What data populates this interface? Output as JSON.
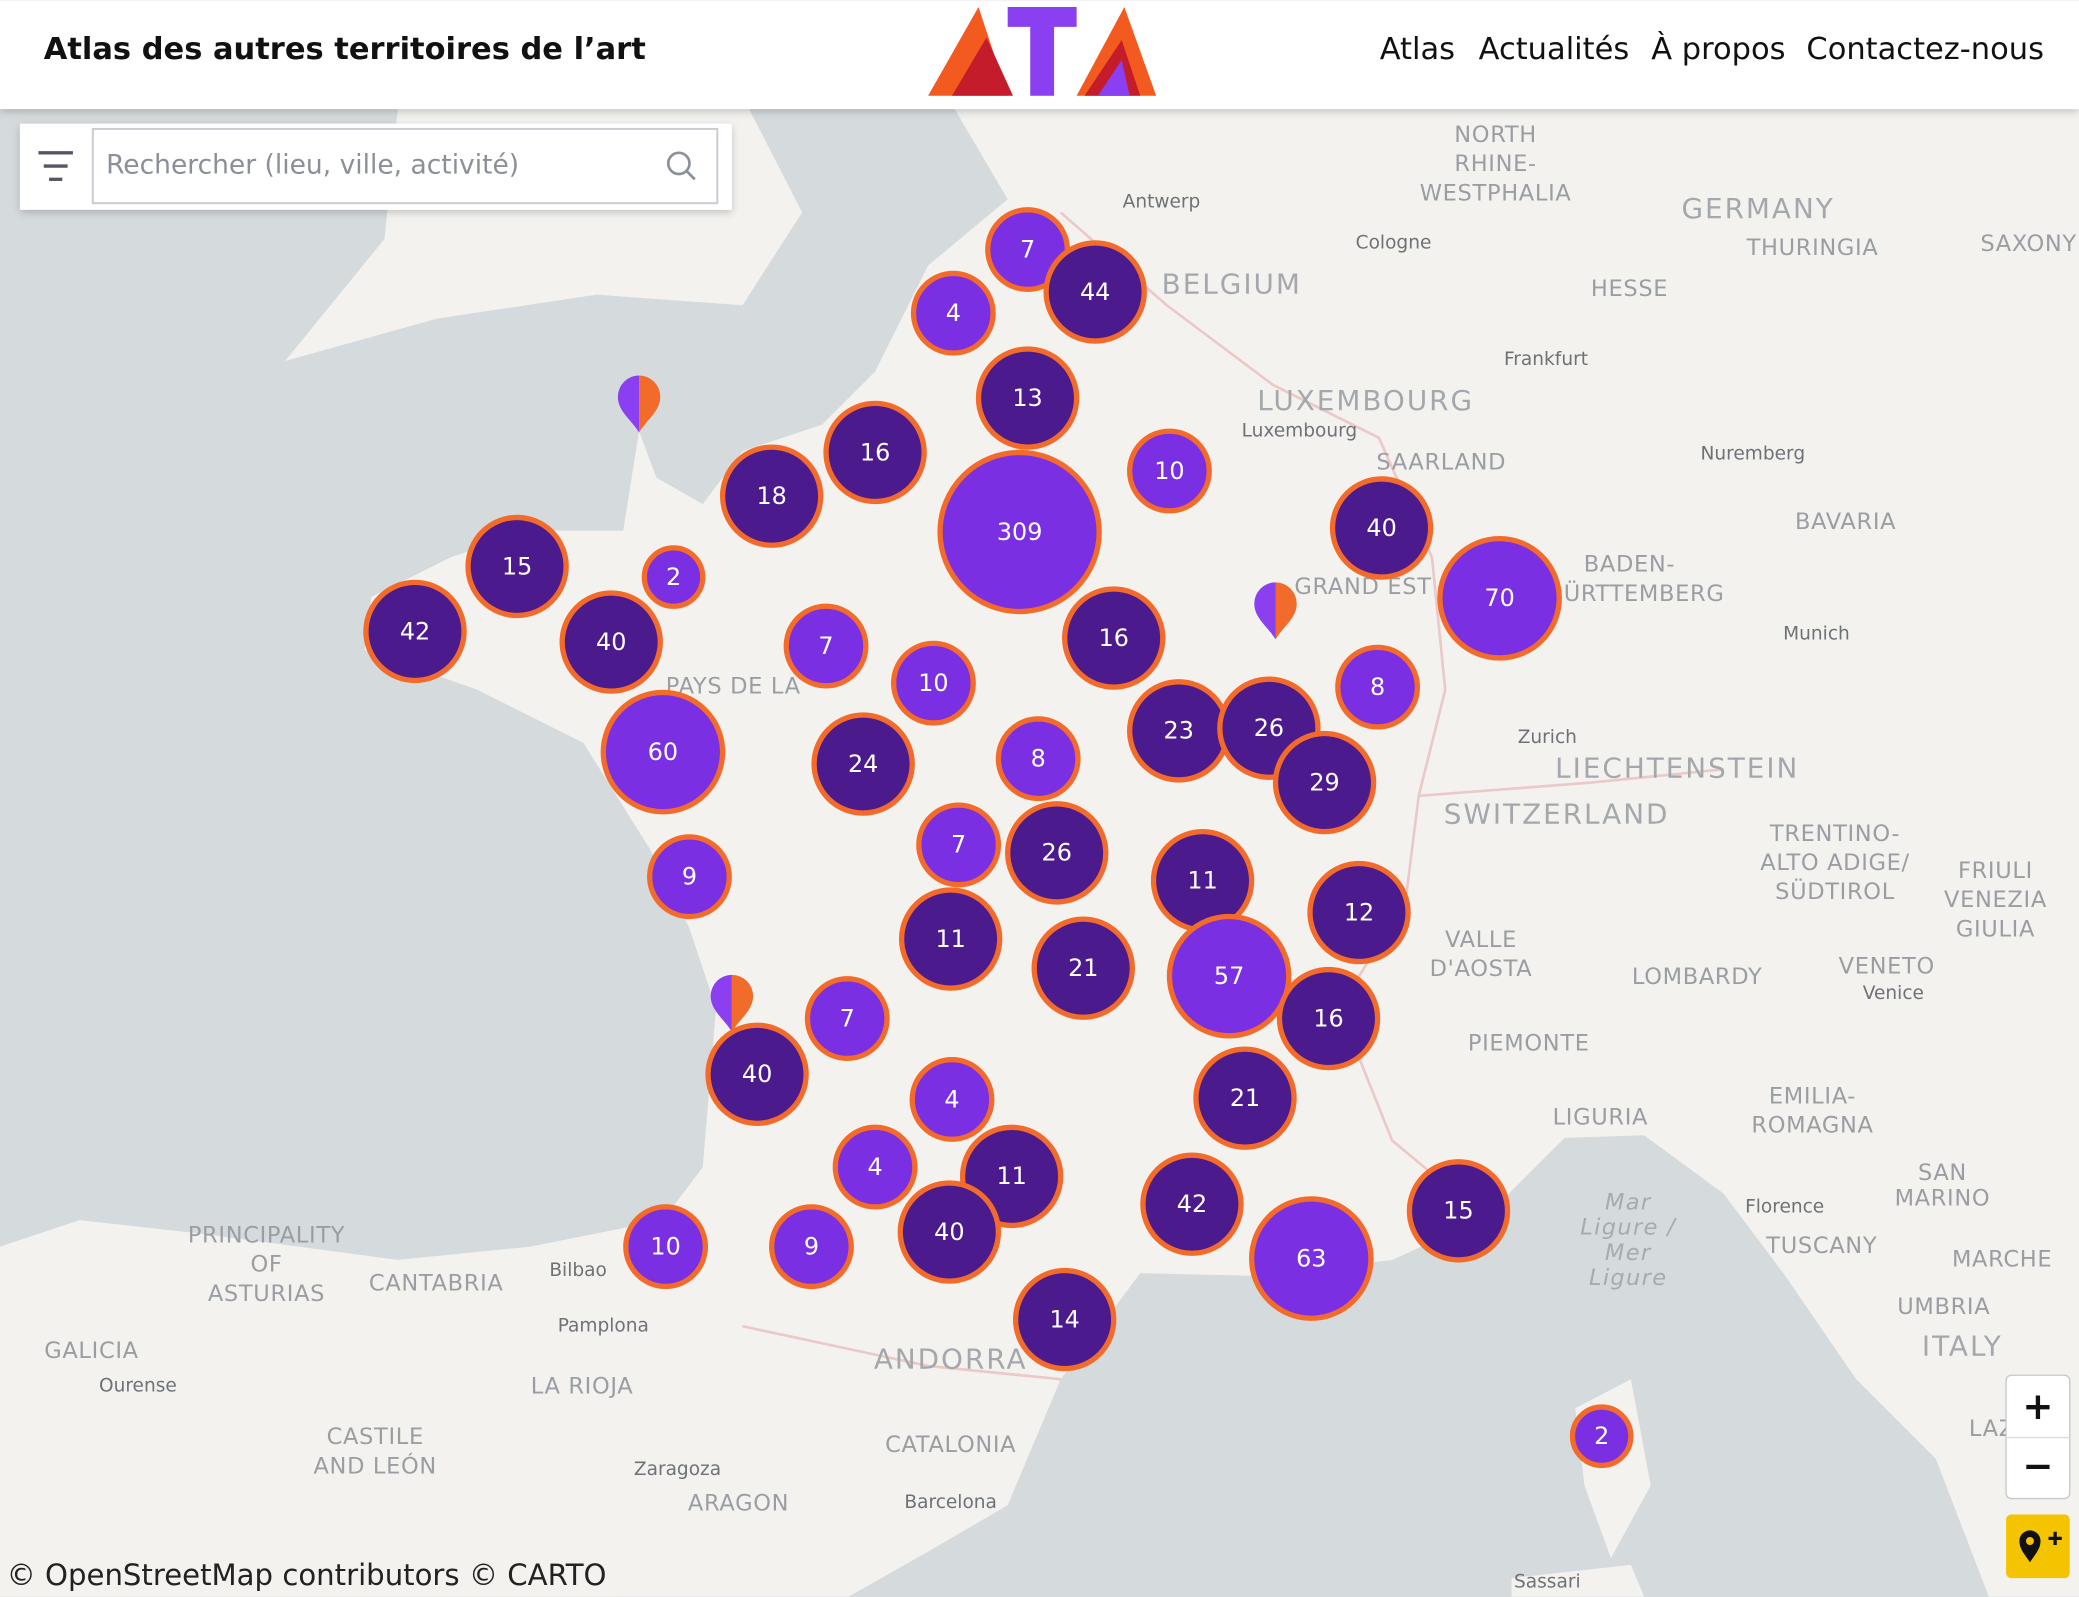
{
  "header": {
    "title": "Atlas des autres territoires de l’art",
    "nav": [
      "Atlas",
      "Actualités",
      "À propos",
      "Contactez-nous"
    ]
  },
  "search": {
    "placeholder": "Rechercher (lieu, ville, activité)"
  },
  "clusters": [
    7,
    44,
    4,
    13,
    16,
    10,
    18,
    309,
    40,
    15,
    2,
    70,
    42,
    40,
    7,
    16,
    8,
    10,
    60,
    24,
    8,
    23,
    26,
    29,
    7,
    26,
    9,
    11,
    12,
    11,
    21,
    57,
    7,
    16,
    40,
    4,
    21,
    11,
    4,
    42,
    15,
    10,
    9,
    40,
    63,
    14,
    2
  ],
  "map_labels": [
    "GERMANY",
    "BELGIUM",
    "LUXEMBOURG",
    "SWITZERLAND",
    "ITALY",
    "ANDORRA",
    "LIECHTENSTEIN",
    "NORTH",
    "RHINE-",
    "WESTPHALIA",
    "THURINGIA",
    "SAXONY",
    "HESSE",
    "SAARLAND",
    "BAVARIA",
    "BADEN-",
    "ÜRTTEMBERG",
    "GRAND EST",
    "PAYS DE LA",
    "TRENTINO-",
    "ALTO ADIGE/",
    "SÜDTIROL",
    "FRIULI",
    "VENEZIA",
    "GIULIA",
    "VALLE",
    "D'AOSTA",
    "LOMBARDY",
    "VENETO",
    "PIEMONTE",
    "LIGURIA",
    "EMILIA-",
    "ROMAGNA",
    "SAN",
    "MARINO",
    "TUSCANY",
    "MARCHE",
    "UMBRIA",
    "PRINCIPALITY",
    "OF",
    "ASTURIAS",
    "CANTABRIA",
    "GALICIA",
    "LA RIOJA",
    "CASTILE",
    "AND LEÓN",
    "CATALONIA",
    "ARAGON",
    "LAZIO",
    "Mar",
    "Ligure /",
    "Mer",
    "Ligure",
    "Antwerp",
    "Cologne",
    "Frankfurt",
    "Luxembourg",
    "Nuremberg",
    "Munich",
    "Zurich",
    "Venice",
    "Florence",
    "Bilbao",
    "Pamplona",
    "Ourense",
    "Zaragoza",
    "Barcelona",
    "Sassari"
  ],
  "attribution": "© OpenStreetMap contributors © CARTO",
  "zoom": {
    "in": "+",
    "out": "−"
  }
}
